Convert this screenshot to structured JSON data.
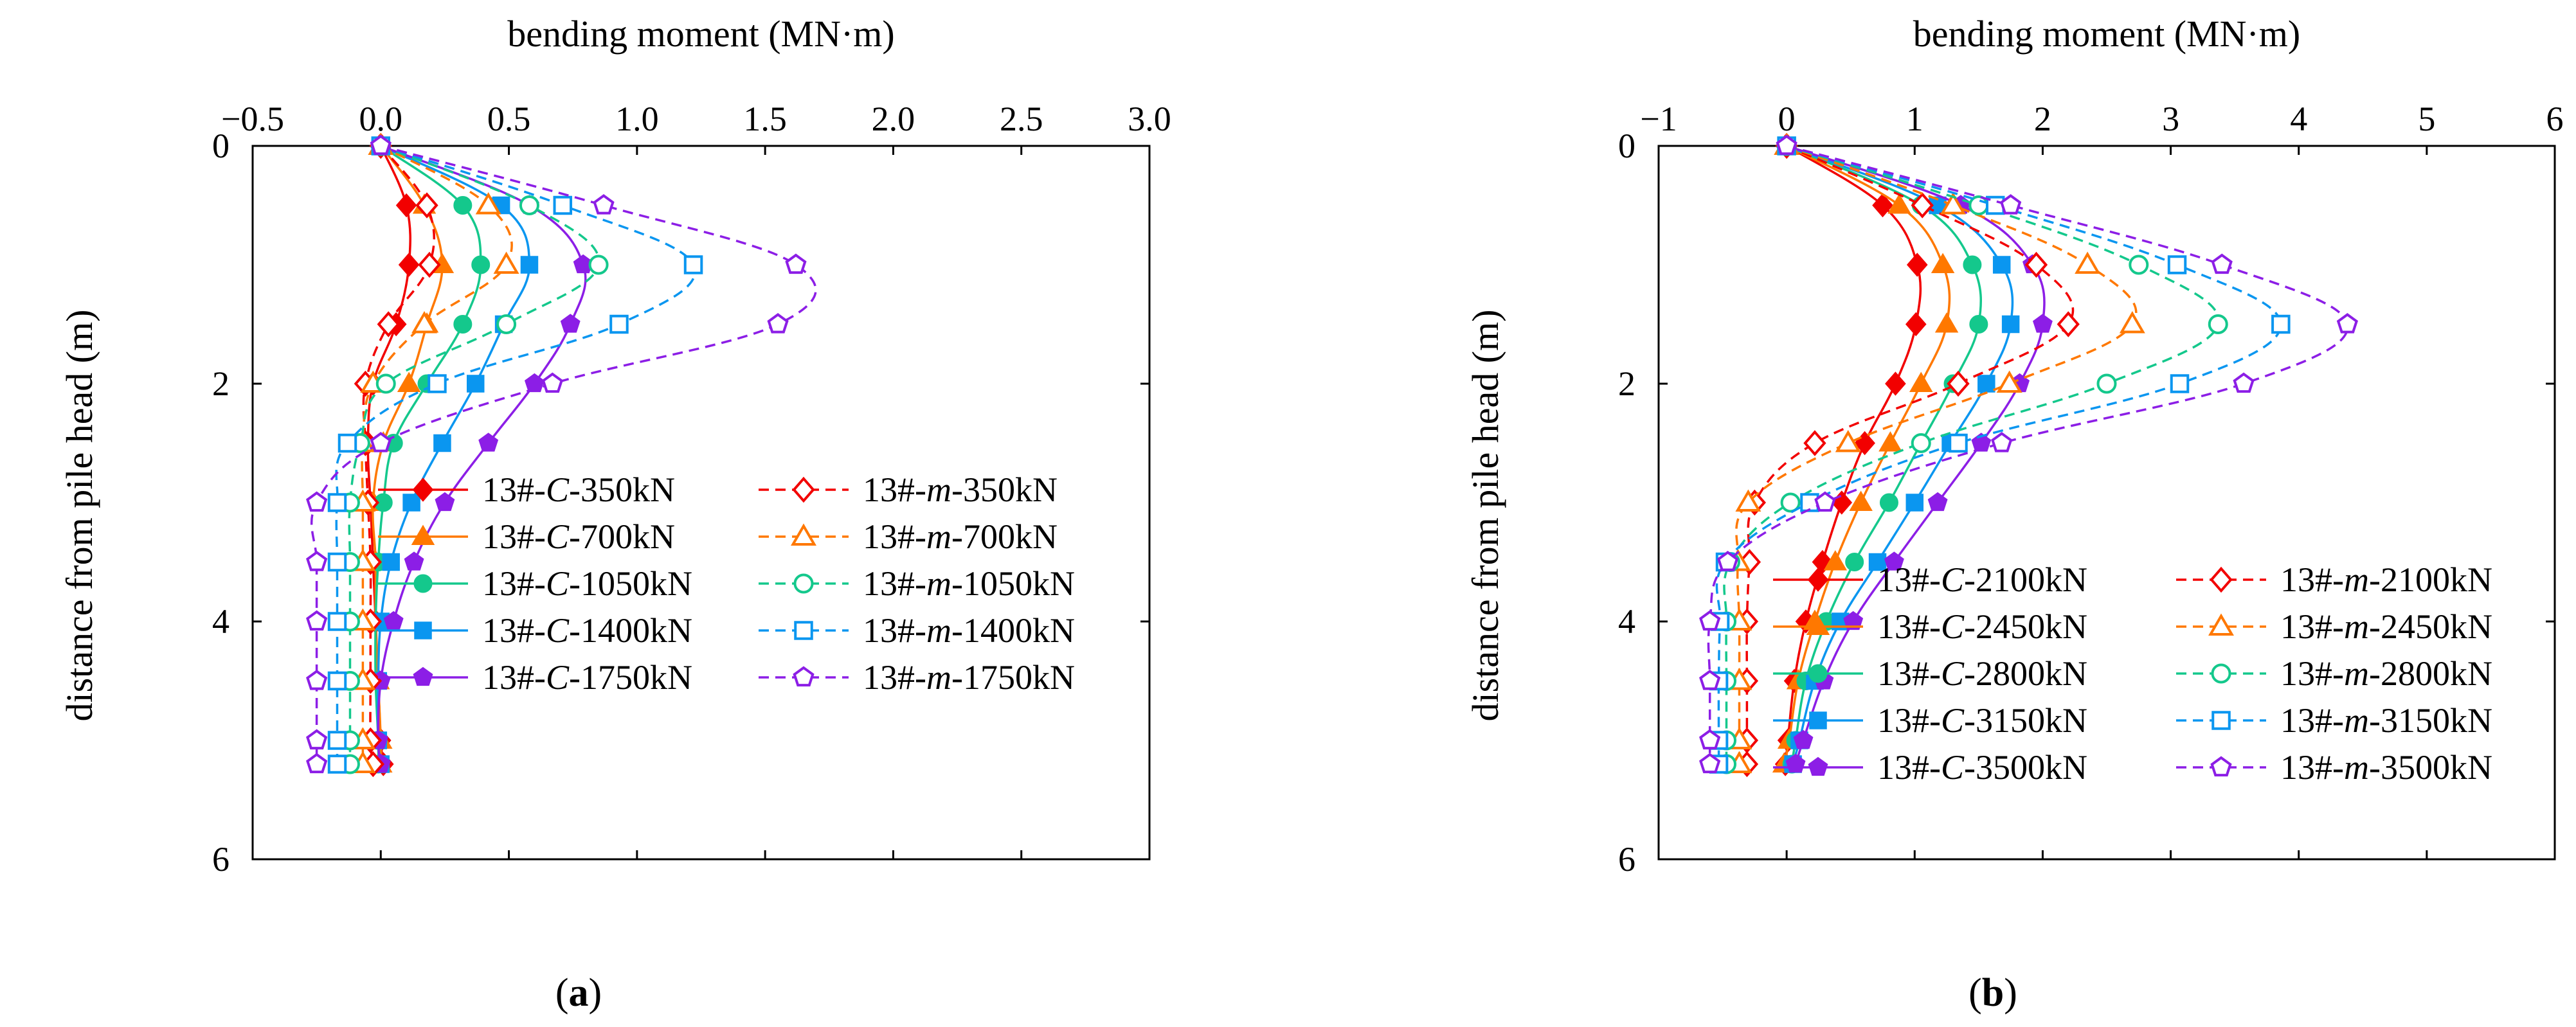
{
  "figure": {
    "panels": [
      {
        "label_prefix": "(",
        "label_letter": "a",
        "label_suffix": ")"
      },
      {
        "label_prefix": "(",
        "label_letter": "b",
        "label_suffix": ")"
      }
    ]
  },
  "chart_data": [
    {
      "type": "line",
      "panel": "a",
      "title": "",
      "xlabel": "bending moment (MN·m)",
      "ylabel": "distance from pile head (m)",
      "xlim": [
        -0.5,
        3.0
      ],
      "ylim": [
        0,
        6
      ],
      "x_inverted": false,
      "y_inverted": true,
      "x_ticks": [
        -0.5,
        0.0,
        0.5,
        1.0,
        1.5,
        2.0,
        2.5,
        3.0
      ],
      "x_tick_labels": [
        "−0.5",
        "0.0",
        "0.5",
        "1.0",
        "1.5",
        "2.0",
        "2.5",
        "3.0"
      ],
      "y_ticks": [
        0,
        2,
        4,
        6
      ],
      "y_tick_labels": [
        "0",
        "2",
        "4",
        "6"
      ],
      "x_axis_position": "top",
      "grid": false,
      "legend_position": "lower-right",
      "legend_columns": 2,
      "series": [
        {
          "name_prefix": "13#-",
          "name_italic": "C",
          "name_suffix": "-350kN",
          "color": "#f20000",
          "marker": "diamond",
          "filled": true,
          "dashed": false,
          "depth": [
            0,
            0.5,
            1.0,
            1.5,
            2.0,
            2.5,
            3.0,
            3.5,
            4.0,
            4.5,
            5.0,
            5.2
          ],
          "moment": [
            0,
            0.1,
            0.11,
            0.06,
            -0.03,
            -0.05,
            -0.04,
            -0.03,
            -0.02,
            -0.01,
            0.0,
            0.01
          ]
        },
        {
          "name_prefix": "13#-",
          "name_italic": "C",
          "name_suffix": "-700kN",
          "color": "#ff7800",
          "marker": "triangle",
          "filled": true,
          "dashed": false,
          "depth": [
            0,
            0.5,
            1.0,
            1.5,
            2.0,
            2.5,
            3.0,
            3.5,
            4.0,
            4.5,
            5.0,
            5.2
          ],
          "moment": [
            0,
            0.17,
            0.24,
            0.18,
            0.11,
            0.01,
            -0.03,
            -0.02,
            -0.02,
            -0.01,
            0.0,
            0.0
          ]
        },
        {
          "name_prefix": "13#-",
          "name_italic": "C",
          "name_suffix": "-1050kN",
          "color": "#14c88c",
          "marker": "circle",
          "filled": true,
          "dashed": false,
          "depth": [
            0,
            0.5,
            1.0,
            1.5,
            2.0,
            2.5,
            3.0,
            3.5,
            4.0,
            4.5,
            5.0,
            5.2
          ],
          "moment": [
            0,
            0.32,
            0.39,
            0.32,
            0.18,
            0.05,
            0.01,
            -0.01,
            -0.02,
            -0.02,
            -0.01,
            -0.01
          ]
        },
        {
          "name_prefix": "13#-",
          "name_italic": "C",
          "name_suffix": "-1400kN",
          "color": "#0a96f0",
          "marker": "square",
          "filled": true,
          "dashed": false,
          "depth": [
            0,
            0.5,
            1.0,
            1.5,
            2.0,
            2.5,
            3.0,
            3.5,
            4.0,
            4.5,
            5.0,
            5.2
          ],
          "moment": [
            0,
            0.47,
            0.58,
            0.48,
            0.37,
            0.24,
            0.12,
            0.04,
            0.0,
            -0.01,
            -0.01,
            0.0
          ]
        },
        {
          "name_prefix": "13#-",
          "name_italic": "C",
          "name_suffix": "-1750kN",
          "color": "#8c1ee6",
          "marker": "pentagon",
          "filled": true,
          "dashed": false,
          "depth": [
            0,
            0.5,
            1.0,
            1.5,
            2.0,
            2.5,
            3.0,
            3.5,
            4.0,
            4.5,
            5.0,
            5.2
          ],
          "moment": [
            0,
            0.58,
            0.79,
            0.74,
            0.6,
            0.42,
            0.25,
            0.13,
            0.05,
            0.0,
            -0.01,
            0.0
          ]
        },
        {
          "name_prefix": "13#-",
          "name_italic": "m",
          "name_suffix": "-350kN",
          "color": "#f20000",
          "marker": "diamond",
          "filled": false,
          "dashed": true,
          "depth": [
            0,
            0.5,
            1.0,
            1.5,
            2.0,
            2.5,
            3.0,
            3.5,
            4.0,
            4.5,
            5.0,
            5.2
          ],
          "moment": [
            0,
            0.18,
            0.19,
            0.03,
            -0.06,
            -0.06,
            -0.05,
            -0.04,
            -0.04,
            -0.04,
            -0.04,
            -0.03
          ]
        },
        {
          "name_prefix": "13#-",
          "name_italic": "m",
          "name_suffix": "-700kN",
          "color": "#ff7800",
          "marker": "triangle",
          "filled": false,
          "dashed": true,
          "depth": [
            0,
            0.5,
            1.0,
            1.5,
            2.0,
            2.5,
            3.0,
            3.5,
            4.0,
            4.5,
            5.0,
            5.2
          ],
          "moment": [
            0,
            0.42,
            0.49,
            0.17,
            -0.03,
            -0.07,
            -0.07,
            -0.07,
            -0.07,
            -0.07,
            -0.07,
            -0.07
          ]
        },
        {
          "name_prefix": "13#-",
          "name_italic": "m",
          "name_suffix": "-1050kN",
          "color": "#14c88c",
          "marker": "circle",
          "filled": false,
          "dashed": true,
          "depth": [
            0,
            0.5,
            1.0,
            1.5,
            2.0,
            2.5,
            3.0,
            3.5,
            4.0,
            4.5,
            5.0,
            5.2
          ],
          "moment": [
            0,
            0.58,
            0.85,
            0.49,
            0.02,
            -0.08,
            -0.12,
            -0.12,
            -0.12,
            -0.12,
            -0.12,
            -0.12
          ]
        },
        {
          "name_prefix": "13#-",
          "name_italic": "m",
          "name_suffix": "-1400kN",
          "color": "#0a96f0",
          "marker": "square",
          "filled": false,
          "dashed": true,
          "depth": [
            0,
            0.5,
            1.0,
            1.5,
            2.0,
            2.5,
            3.0,
            3.5,
            4.0,
            4.5,
            5.0,
            5.2
          ],
          "moment": [
            0,
            0.71,
            1.22,
            0.93,
            0.22,
            -0.13,
            -0.17,
            -0.17,
            -0.17,
            -0.17,
            -0.17,
            -0.17
          ]
        },
        {
          "name_prefix": "13#-",
          "name_italic": "m",
          "name_suffix": "-1750kN",
          "color": "#8c1ee6",
          "marker": "pentagon",
          "filled": false,
          "dashed": true,
          "depth": [
            0,
            0.5,
            1.0,
            1.5,
            2.0,
            2.5,
            3.0,
            3.5,
            4.0,
            4.5,
            5.0,
            5.2
          ],
          "moment": [
            0,
            0.87,
            1.62,
            1.55,
            0.67,
            0.0,
            -0.25,
            -0.25,
            -0.25,
            -0.25,
            -0.25,
            -0.25
          ]
        }
      ]
    },
    {
      "type": "line",
      "panel": "b",
      "title": "",
      "xlabel": "bending moment (MN·m)",
      "ylabel": "distance from pile head (m)",
      "xlim": [
        -1,
        6
      ],
      "ylim": [
        0,
        6
      ],
      "x_inverted": false,
      "y_inverted": true,
      "x_ticks": [
        -1,
        0,
        1,
        2,
        3,
        4,
        5,
        6
      ],
      "x_tick_labels": [
        "−1",
        "0",
        "1",
        "2",
        "3",
        "4",
        "5",
        "6"
      ],
      "y_ticks": [
        0,
        2,
        4,
        6
      ],
      "y_tick_labels": [
        "0",
        "2",
        "4",
        "6"
      ],
      "x_axis_position": "top",
      "grid": false,
      "legend_position": "lower-right",
      "legend_columns": 2,
      "series": [
        {
          "name_prefix": "13#-",
          "name_italic": "C",
          "name_suffix": "-2100kN",
          "color": "#f20000",
          "marker": "diamond",
          "filled": true,
          "dashed": false,
          "depth": [
            0,
            0.5,
            1.0,
            1.5,
            2.0,
            2.5,
            3.0,
            3.5,
            4.0,
            4.5,
            5.0,
            5.2
          ],
          "moment": [
            0,
            0.75,
            1.02,
            1.01,
            0.85,
            0.61,
            0.43,
            0.28,
            0.15,
            0.06,
            0.01,
            -0.01
          ]
        },
        {
          "name_prefix": "13#-",
          "name_italic": "C",
          "name_suffix": "-2450kN",
          "color": "#ff7800",
          "marker": "triangle",
          "filled": true,
          "dashed": false,
          "depth": [
            0,
            0.5,
            1.0,
            1.5,
            2.0,
            2.5,
            3.0,
            3.5,
            4.0,
            4.5,
            5.0,
            5.2
          ],
          "moment": [
            0,
            0.88,
            1.22,
            1.25,
            1.05,
            0.81,
            0.58,
            0.38,
            0.22,
            0.09,
            0.02,
            -0.02
          ]
        },
        {
          "name_prefix": "13#-",
          "name_italic": "C",
          "name_suffix": "-2800kN",
          "color": "#14c88c",
          "marker": "circle",
          "filled": true,
          "dashed": false,
          "depth": [
            0,
            0.5,
            1.0,
            1.5,
            2.0,
            2.5,
            3.0,
            3.5,
            4.0,
            4.5,
            5.0,
            5.2
          ],
          "moment": [
            0,
            1.05,
            1.45,
            1.5,
            1.3,
            1.05,
            0.8,
            0.53,
            0.31,
            0.15,
            0.07,
            0.04
          ]
        },
        {
          "name_prefix": "13#-",
          "name_italic": "C",
          "name_suffix": "-3150kN",
          "color": "#0a96f0",
          "marker": "square",
          "filled": true,
          "dashed": false,
          "depth": [
            0,
            0.5,
            1.0,
            1.5,
            2.0,
            2.5,
            3.0,
            3.5,
            4.0,
            4.5,
            5.0,
            5.2
          ],
          "moment": [
            0,
            1.18,
            1.68,
            1.75,
            1.56,
            1.28,
            1.0,
            0.71,
            0.42,
            0.22,
            0.1,
            0.05
          ]
        },
        {
          "name_prefix": "13#-",
          "name_italic": "C",
          "name_suffix": "-3500kN",
          "color": "#8c1ee6",
          "marker": "pentagon",
          "filled": true,
          "dashed": false,
          "depth": [
            0,
            0.5,
            1.0,
            1.5,
            2.0,
            2.5,
            3.0,
            3.5,
            4.0,
            4.5,
            5.0,
            5.2
          ],
          "moment": [
            0,
            1.36,
            1.92,
            2.0,
            1.82,
            1.52,
            1.18,
            0.84,
            0.52,
            0.29,
            0.13,
            0.07
          ]
        },
        {
          "name_prefix": "13#-",
          "name_italic": "m",
          "name_suffix": "-2100kN",
          "color": "#f20000",
          "marker": "diamond",
          "filled": false,
          "dashed": true,
          "depth": [
            0,
            0.5,
            1.0,
            1.5,
            2.0,
            2.5,
            3.0,
            3.5,
            4.0,
            4.5,
            5.0,
            5.2
          ],
          "moment": [
            0,
            1.06,
            1.95,
            2.2,
            1.34,
            0.22,
            -0.25,
            -0.29,
            -0.31,
            -0.31,
            -0.31,
            -0.31
          ]
        },
        {
          "name_prefix": "13#-",
          "name_italic": "m",
          "name_suffix": "-2450kN",
          "color": "#ff7800",
          "marker": "triangle",
          "filled": false,
          "dashed": true,
          "depth": [
            0,
            0.5,
            1.0,
            1.5,
            2.0,
            2.5,
            3.0,
            3.5,
            4.0,
            4.5,
            5.0,
            5.2
          ],
          "moment": [
            0,
            1.3,
            2.35,
            2.7,
            1.74,
            0.48,
            -0.3,
            -0.38,
            -0.37,
            -0.37,
            -0.37,
            -0.37
          ]
        },
        {
          "name_prefix": "13#-",
          "name_italic": "m",
          "name_suffix": "-2800kN",
          "color": "#14c88c",
          "marker": "circle",
          "filled": false,
          "dashed": true,
          "depth": [
            0,
            0.5,
            1.0,
            1.5,
            2.0,
            2.5,
            3.0,
            3.5,
            4.0,
            4.5,
            5.0,
            5.2
          ],
          "moment": [
            0,
            1.5,
            2.75,
            3.37,
            2.5,
            1.05,
            0.03,
            -0.44,
            -0.47,
            -0.47,
            -0.47,
            -0.47
          ]
        },
        {
          "name_prefix": "13#-",
          "name_italic": "m",
          "name_suffix": "-3150kN",
          "color": "#0a96f0",
          "marker": "square",
          "filled": false,
          "dashed": true,
          "depth": [
            0,
            0.5,
            1.0,
            1.5,
            2.0,
            2.5,
            3.0,
            3.5,
            4.0,
            4.5,
            5.0,
            5.2
          ],
          "moment": [
            0,
            1.63,
            3.05,
            3.86,
            3.07,
            1.34,
            0.18,
            -0.48,
            -0.52,
            -0.53,
            -0.53,
            -0.53
          ]
        },
        {
          "name_prefix": "13#-",
          "name_italic": "m",
          "name_suffix": "-3500kN",
          "color": "#8c1ee6",
          "marker": "pentagon",
          "filled": false,
          "dashed": true,
          "depth": [
            0,
            0.5,
            1.0,
            1.5,
            2.0,
            2.5,
            3.0,
            3.5,
            4.0,
            4.5,
            5.0,
            5.2
          ],
          "moment": [
            0,
            1.75,
            3.4,
            4.38,
            3.57,
            1.68,
            0.3,
            -0.46,
            -0.6,
            -0.6,
            -0.6,
            -0.6
          ]
        }
      ]
    }
  ]
}
